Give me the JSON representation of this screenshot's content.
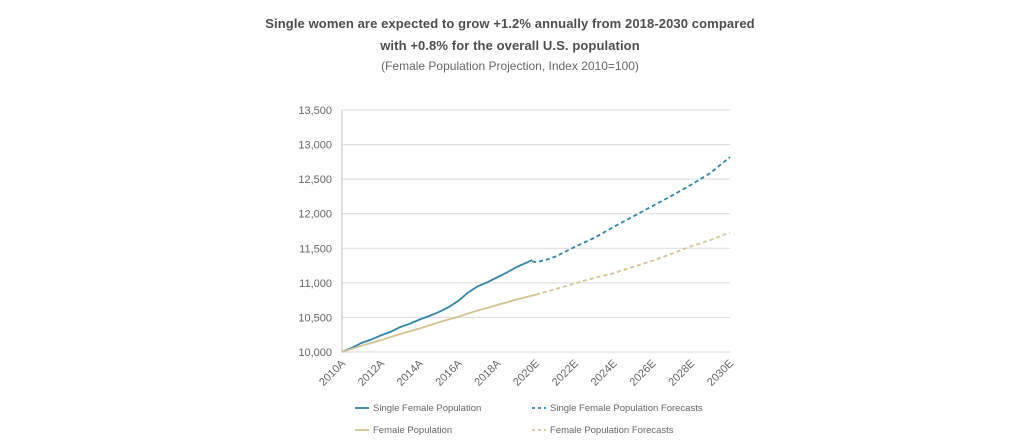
{
  "chart_data": {
    "type": "line",
    "title_line_1": "Single women are expected to grow +1.2% annually from 2018-2030 compared",
    "title_line_2": "with +0.8% for the overall U.S. population",
    "subtitle": "(Female Population Projection, Index 2010=100)",
    "xlabel": "",
    "ylabel": "",
    "ylim": [
      10000,
      13500
    ],
    "yticks": [
      10000,
      10500,
      11000,
      11500,
      12000,
      12500,
      13000,
      13500
    ],
    "ytick_labels": [
      "10,000",
      "10,500",
      "11,000",
      "11,500",
      "12,000",
      "12,500",
      "13,000",
      "13,500"
    ],
    "xlim": [
      2010,
      2030
    ],
    "xticks": [
      2010,
      2012,
      2014,
      2016,
      2018,
      2020,
      2022,
      2024,
      2026,
      2028,
      2030
    ],
    "xtick_labels": [
      "2010A",
      "2012A",
      "2014A",
      "2016A",
      "2018A",
      "2020E",
      "2022E",
      "2024E",
      "2026E",
      "2028E",
      "2030E"
    ],
    "grid": "horizontal",
    "legend_position": "bottom",
    "series": [
      {
        "name": "Single Female Population",
        "color": "#2e86ab",
        "style": "solid",
        "points": [
          [
            2010.0,
            10000
          ],
          [
            2010.5,
            10060
          ],
          [
            2011.0,
            10130
          ],
          [
            2011.5,
            10180
          ],
          [
            2012.0,
            10240
          ],
          [
            2012.5,
            10290
          ],
          [
            2013.0,
            10360
          ],
          [
            2013.5,
            10410
          ],
          [
            2014.0,
            10470
          ],
          [
            2014.5,
            10520
          ],
          [
            2015.0,
            10580
          ],
          [
            2015.5,
            10650
          ],
          [
            2016.0,
            10740
          ],
          [
            2016.5,
            10860
          ],
          [
            2017.0,
            10950
          ],
          [
            2017.5,
            11010
          ],
          [
            2018.0,
            11080
          ],
          [
            2018.5,
            11150
          ],
          [
            2019.0,
            11230
          ],
          [
            2019.5,
            11290
          ],
          [
            2019.8,
            11330
          ]
        ]
      },
      {
        "name": "Single Female Population Forecasts",
        "color": "#2e86ab",
        "style": "dashed",
        "points": [
          [
            2019.8,
            11310
          ],
          [
            2020.0,
            11300
          ],
          [
            2020.5,
            11330
          ],
          [
            2021.0,
            11380
          ],
          [
            2022.0,
            11520
          ],
          [
            2023.0,
            11650
          ],
          [
            2024.0,
            11810
          ],
          [
            2025.0,
            11960
          ],
          [
            2026.0,
            12110
          ],
          [
            2027.0,
            12260
          ],
          [
            2028.0,
            12420
          ],
          [
            2029.0,
            12590
          ],
          [
            2030.0,
            12820
          ]
        ]
      },
      {
        "name": "Female Population",
        "color": "#d4c48e",
        "style": "solid",
        "points": [
          [
            2010.0,
            10000
          ],
          [
            2011.0,
            10090
          ],
          [
            2012.0,
            10170
          ],
          [
            2013.0,
            10260
          ],
          [
            2014.0,
            10340
          ],
          [
            2015.0,
            10430
          ],
          [
            2016.0,
            10510
          ],
          [
            2017.0,
            10600
          ],
          [
            2018.0,
            10680
          ],
          [
            2019.0,
            10760
          ],
          [
            2020.0,
            10830
          ]
        ]
      },
      {
        "name": "Female Population Forecasts",
        "color": "#d4c48e",
        "style": "dashed",
        "points": [
          [
            2020.0,
            10830
          ],
          [
            2021.0,
            10910
          ],
          [
            2022.0,
            10990
          ],
          [
            2023.0,
            11070
          ],
          [
            2024.0,
            11140
          ],
          [
            2025.0,
            11230
          ],
          [
            2026.0,
            11320
          ],
          [
            2027.0,
            11420
          ],
          [
            2028.0,
            11530
          ],
          [
            2029.0,
            11620
          ],
          [
            2030.0,
            11730
          ]
        ]
      }
    ],
    "legend": [
      {
        "label": "Single Female Population",
        "series": 0
      },
      {
        "label": "Single Female Population Forecasts",
        "series": 1
      },
      {
        "label": "Female Population",
        "series": 2
      },
      {
        "label": "Female Population Forecasts",
        "series": 3
      }
    ]
  }
}
